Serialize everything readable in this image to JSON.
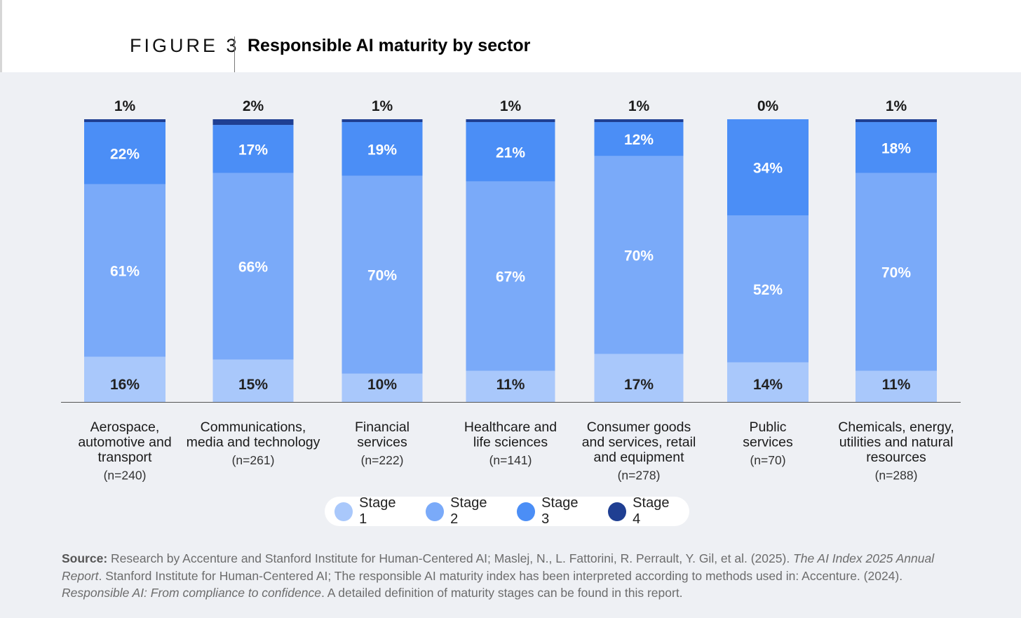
{
  "header": {
    "figure_label": "FIGURE 3",
    "title": "Responsible AI maturity by sector"
  },
  "colors": {
    "stage1": "#a9c8fb",
    "stage2": "#7aaaf9",
    "stage3": "#4b8ef6",
    "stage4": "#1f3f92",
    "background": "#eef0f4",
    "label_text": "#ffffff",
    "stage1_label_text": "#222222"
  },
  "chart_data": {
    "type": "bar",
    "stacked": true,
    "orientation": "vertical",
    "categories": [
      {
        "lines": [
          "Aerospace,",
          "automotive and",
          "transport"
        ],
        "n": "(n=240)"
      },
      {
        "lines": [
          "Communications,",
          "media and technology"
        ],
        "n": "(n=261)"
      },
      {
        "lines": [
          "Financial",
          "services"
        ],
        "n": "(n=222)"
      },
      {
        "lines": [
          "Healthcare and",
          "life sciences"
        ],
        "n": "(n=141)"
      },
      {
        "lines": [
          "Consumer goods",
          "and services, retail",
          "and equipment"
        ],
        "n": "(n=278)"
      },
      {
        "lines": [
          "Public",
          "services"
        ],
        "n": "(n=70)"
      },
      {
        "lines": [
          "Chemicals, energy,",
          "utilities and natural",
          "resources"
        ],
        "n": "(n=288)"
      }
    ],
    "series": [
      {
        "name": "Stage 1",
        "values": [
          16,
          15,
          10,
          11,
          17,
          14,
          11
        ]
      },
      {
        "name": "Stage 2",
        "values": [
          61,
          66,
          70,
          67,
          70,
          52,
          70
        ]
      },
      {
        "name": "Stage 3",
        "values": [
          22,
          17,
          19,
          21,
          12,
          34,
          18
        ]
      },
      {
        "name": "Stage 4",
        "values": [
          1,
          2,
          1,
          1,
          1,
          0,
          1
        ]
      }
    ],
    "value_suffix": "%",
    "legend_position": "bottom-center"
  },
  "source": {
    "label": "Source:",
    "text1": "Research by Accenture and Stanford Institute for Human-Centered AI; Maslej, N., L. Fattorini, R. Perrault, Y. Gil, et al. (2025). ",
    "italic1": "The AI Index 2025 Annual Report",
    "text2": ". Stanford Institute for Human-Centered AI; The responsible AI maturity index has been interpreted according to methods used in: Accenture. (2024). ",
    "italic2": "Responsible AI: From compliance to confidence",
    "text3": ". A detailed definition of maturity stages can be found in this report."
  }
}
